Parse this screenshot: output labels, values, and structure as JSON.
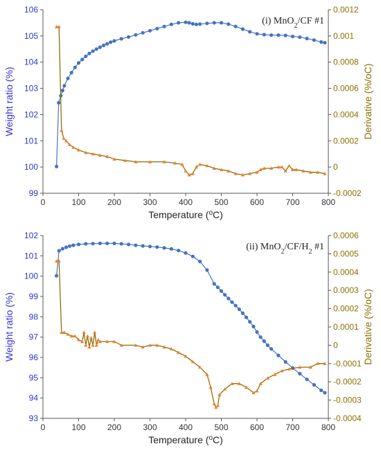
{
  "colors": {
    "weight": "#4472C4",
    "derivative": "#ED7D31",
    "left_axis": "#3333CC",
    "right_axis": "#8B7000",
    "axis_line": "#555555"
  },
  "chart_data": [
    {
      "type": "line",
      "annotation": "(i) MnO2/CF #1",
      "xlabel": "Temperature (oC)",
      "ylabel": "Weight ratio (%)",
      "y2label": "Derivative (%/oC)",
      "xlim": [
        0,
        800
      ],
      "ylim": [
        99,
        106
      ],
      "y2lim": [
        -0.0002,
        0.0012
      ],
      "xticks": [
        0,
        100,
        200,
        300,
        400,
        500,
        600,
        700,
        800
      ],
      "yticks": [
        99,
        100,
        101,
        102,
        103,
        104,
        105,
        106
      ],
      "y2ticks": [
        -0.0002,
        0,
        0.0002,
        0.0004,
        0.0006,
        0.0008,
        0.001,
        0.0012
      ],
      "grid": false,
      "series": [
        {
          "axis": "left",
          "color": "#4472C4",
          "marker": "circle",
          "points": [
            [
              38,
              100.02
            ],
            [
              44,
              102.45
            ],
            [
              50,
              102.72
            ],
            [
              55,
              102.92
            ],
            [
              60,
              103.1
            ],
            [
              70,
              103.38
            ],
            [
              80,
              103.6
            ],
            [
              90,
              103.8
            ],
            [
              100,
              103.97
            ],
            [
              110,
              104.1
            ],
            [
              120,
              104.22
            ],
            [
              130,
              104.33
            ],
            [
              140,
              104.42
            ],
            [
              150,
              104.5
            ],
            [
              160,
              104.57
            ],
            [
              170,
              104.64
            ],
            [
              180,
              104.7
            ],
            [
              190,
              104.76
            ],
            [
              200,
              104.81
            ],
            [
              220,
              104.89
            ],
            [
              240,
              104.96
            ],
            [
              260,
              105.04
            ],
            [
              280,
              105.12
            ],
            [
              300,
              105.2
            ],
            [
              320,
              105.28
            ],
            [
              340,
              105.36
            ],
            [
              360,
              105.44
            ],
            [
              380,
              105.5
            ],
            [
              400,
              105.52
            ],
            [
              410,
              105.5
            ],
            [
              420,
              105.46
            ],
            [
              430,
              105.44
            ],
            [
              440,
              105.45
            ],
            [
              460,
              105.48
            ],
            [
              480,
              105.5
            ],
            [
              500,
              105.5
            ],
            [
              520,
              105.45
            ],
            [
              540,
              105.36
            ],
            [
              560,
              105.26
            ],
            [
              580,
              105.16
            ],
            [
              600,
              105.08
            ],
            [
              620,
              105.05
            ],
            [
              640,
              105.03
            ],
            [
              660,
              105.03
            ],
            [
              680,
              105.02
            ],
            [
              700,
              104.98
            ],
            [
              720,
              104.95
            ],
            [
              740,
              104.9
            ],
            [
              760,
              104.84
            ],
            [
              780,
              104.77
            ],
            [
              790,
              104.74
            ]
          ]
        },
        {
          "axis": "right",
          "color": "#ED7D31",
          "marker": "triangle",
          "points": [
            [
              38,
              0.00107
            ],
            [
              45,
              0.00107
            ],
            [
              52,
              0.00028
            ],
            [
              58,
              0.00022
            ],
            [
              65,
              0.0002
            ],
            [
              75,
              0.00017
            ],
            [
              85,
              0.00015
            ],
            [
              100,
              0.00013
            ],
            [
              120,
              0.00011
            ],
            [
              140,
              0.0001
            ],
            [
              160,
              9e-05
            ],
            [
              180,
              8e-05
            ],
            [
              200,
              6e-05
            ],
            [
              230,
              5e-05
            ],
            [
              260,
              4e-05
            ],
            [
              300,
              4e-05
            ],
            [
              340,
              4e-05
            ],
            [
              370,
              3e-05
            ],
            [
              390,
              2e-05
            ],
            [
              400,
              -3e-05
            ],
            [
              410,
              -6e-05
            ],
            [
              420,
              -5e-05
            ],
            [
              430,
              0.0
            ],
            [
              440,
              2e-05
            ],
            [
              460,
              1e-05
            ],
            [
              480,
              -1e-05
            ],
            [
              500,
              -2e-05
            ],
            [
              520,
              -3e-05
            ],
            [
              540,
              -5e-05
            ],
            [
              560,
              -6e-05
            ],
            [
              580,
              -5e-05
            ],
            [
              600,
              -4e-05
            ],
            [
              610,
              -2e-05
            ],
            [
              620,
              -1e-05
            ],
            [
              640,
              -1e-05
            ],
            [
              660,
              0.0
            ],
            [
              670,
              0.0
            ],
            [
              680,
              -3e-05
            ],
            [
              690,
              1e-05
            ],
            [
              700,
              -2e-05
            ],
            [
              710,
              -2e-05
            ],
            [
              730,
              -3e-05
            ],
            [
              750,
              -4e-05
            ],
            [
              770,
              -4e-05
            ],
            [
              790,
              -5e-05
            ]
          ]
        }
      ]
    },
    {
      "type": "line",
      "annotation": "(ii) MnO2/CF/H2 #1",
      "xlabel": "Temperature (oC)",
      "ylabel": "Weight ratio (%)",
      "y2label": "Derivative (%/oC)",
      "xlim": [
        0,
        800
      ],
      "ylim": [
        93,
        102
      ],
      "y2lim": [
        -0.0004,
        0.0006
      ],
      "xticks": [
        0,
        100,
        200,
        300,
        400,
        500,
        600,
        700,
        800
      ],
      "yticks": [
        93,
        94,
        95,
        96,
        97,
        98,
        99,
        100,
        101,
        102
      ],
      "y2ticks": [
        -0.0004,
        -0.0003,
        -0.0002,
        -0.0001,
        0,
        0.0001,
        0.0002,
        0.0003,
        0.0004,
        0.0005,
        0.0006
      ],
      "grid": false,
      "series": [
        {
          "axis": "left",
          "color": "#4472C4",
          "marker": "circle",
          "points": [
            [
              38,
              100.02
            ],
            [
              45,
              101.25
            ],
            [
              55,
              101.35
            ],
            [
              65,
              101.42
            ],
            [
              75,
              101.48
            ],
            [
              85,
              101.52
            ],
            [
              100,
              101.56
            ],
            [
              120,
              101.59
            ],
            [
              140,
              101.6
            ],
            [
              160,
              101.61
            ],
            [
              180,
              101.61
            ],
            [
              200,
              101.61
            ],
            [
              220,
              101.59
            ],
            [
              240,
              101.56
            ],
            [
              260,
              101.52
            ],
            [
              280,
              101.49
            ],
            [
              300,
              101.46
            ],
            [
              320,
              101.43
            ],
            [
              340,
              101.39
            ],
            [
              360,
              101.34
            ],
            [
              380,
              101.26
            ],
            [
              400,
              101.14
            ],
            [
              420,
              100.97
            ],
            [
              440,
              100.72
            ],
            [
              460,
              100.3
            ],
            [
              480,
              99.62
            ],
            [
              490,
              99.45
            ],
            [
              500,
              99.27
            ],
            [
              510,
              99.08
            ],
            [
              520,
              98.9
            ],
            [
              530,
              98.72
            ],
            [
              540,
              98.55
            ],
            [
              550,
              98.37
            ],
            [
              560,
              98.18
            ],
            [
              570,
              97.97
            ],
            [
              580,
              97.75
            ],
            [
              590,
              97.52
            ],
            [
              600,
              97.25
            ],
            [
              610,
              97.0
            ],
            [
              620,
              96.8
            ],
            [
              630,
              96.6
            ],
            [
              640,
              96.42
            ],
            [
              660,
              96.1
            ],
            [
              680,
              95.78
            ],
            [
              700,
              95.48
            ],
            [
              720,
              95.2
            ],
            [
              740,
              94.92
            ],
            [
              760,
              94.65
            ],
            [
              780,
              94.38
            ],
            [
              790,
              94.26
            ]
          ]
        },
        {
          "axis": "right",
          "color": "#ED7D31",
          "marker": "triangle",
          "points": [
            [
              38,
              0.00046
            ],
            [
              45,
              0.00046
            ],
            [
              52,
              7e-05
            ],
            [
              60,
              7e-05
            ],
            [
              70,
              6e-05
            ],
            [
              80,
              5e-05
            ],
            [
              90,
              5e-05
            ],
            [
              100,
              3e-05
            ],
            [
              110,
              2e-05
            ],
            [
              115,
              7e-05
            ],
            [
              120,
              0.0
            ],
            [
              125,
              5e-05
            ],
            [
              130,
              -1e-05
            ],
            [
              135,
              4e-05
            ],
            [
              140,
              0.0
            ],
            [
              145,
              7e-05
            ],
            [
              150,
              0.0
            ],
            [
              155,
              3e-05
            ],
            [
              160,
              2e-05
            ],
            [
              180,
              2e-05
            ],
            [
              200,
              2e-05
            ],
            [
              220,
              0.0
            ],
            [
              260,
              0.0
            ],
            [
              280,
              -1e-05
            ],
            [
              300,
              0.0
            ],
            [
              320,
              0.0
            ],
            [
              340,
              -1e-05
            ],
            [
              360,
              -2e-05
            ],
            [
              380,
              -4e-05
            ],
            [
              400,
              -6e-05
            ],
            [
              420,
              -9e-05
            ],
            [
              440,
              -0.00012
            ],
            [
              460,
              -0.00016
            ],
            [
              470,
              -0.00023
            ],
            [
              480,
              -0.00032
            ],
            [
              485,
              -0.00034
            ],
            [
              490,
              -0.00033
            ],
            [
              495,
              -0.00027
            ],
            [
              510,
              -0.00024
            ],
            [
              530,
              -0.00021
            ],
            [
              550,
              -0.00021
            ],
            [
              570,
              -0.00023
            ],
            [
              590,
              -0.00026
            ],
            [
              600,
              -0.00025
            ],
            [
              610,
              -0.00021
            ],
            [
              630,
              -0.00018
            ],
            [
              650,
              -0.00016
            ],
            [
              670,
              -0.00014
            ],
            [
              690,
              -0.00013
            ],
            [
              720,
              -0.00012
            ],
            [
              750,
              -0.00012
            ],
            [
              770,
              -0.0001
            ],
            [
              790,
              -0.0001
            ]
          ]
        }
      ]
    }
  ]
}
